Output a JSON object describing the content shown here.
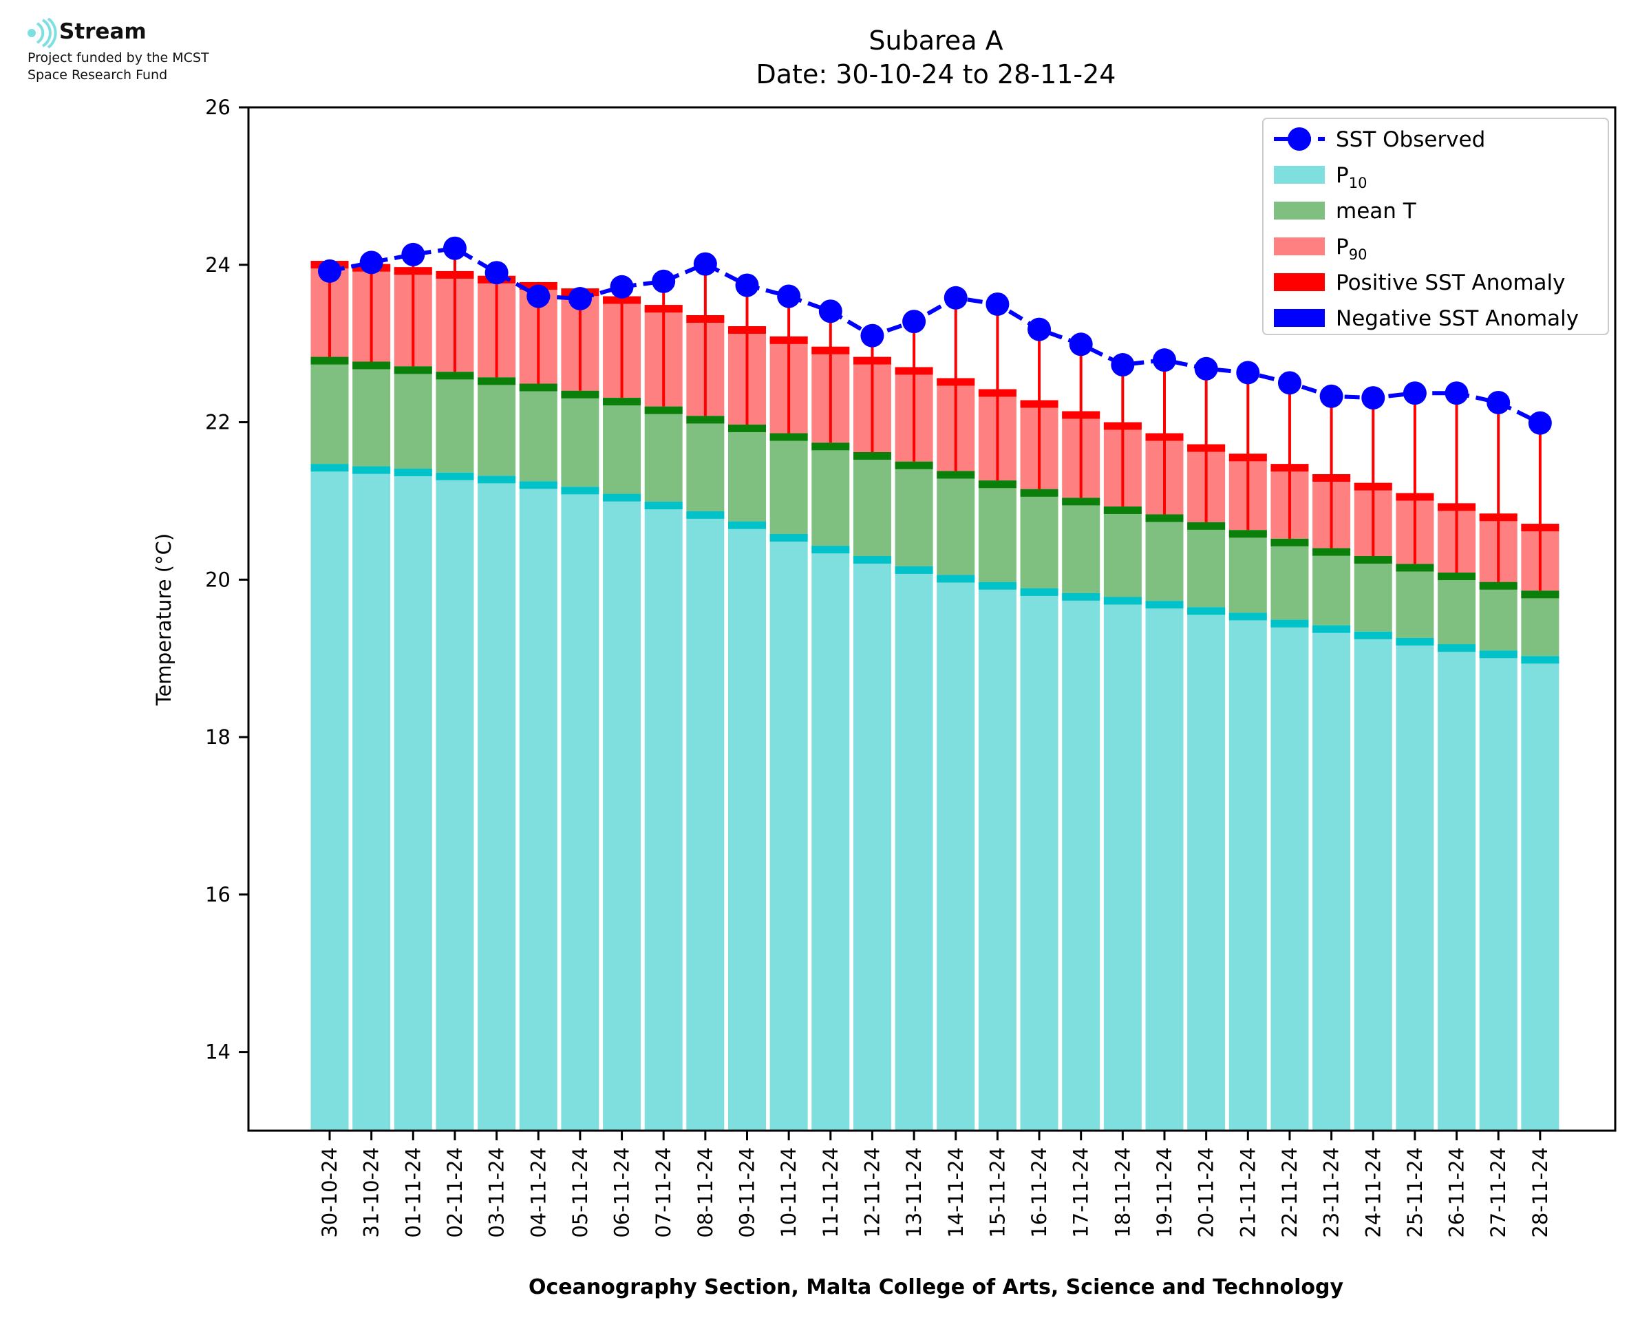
{
  "logo": {
    "name": "Stream",
    "line1": "Project funded by the MCST",
    "line2": "Space Research Fund",
    "color": "#7ddfdf"
  },
  "chart_data": {
    "type": "bar",
    "title": "Subarea A",
    "subtitle": "Date: 30-10-24 to 28-11-24",
    "xlabel": "Oceanography Section, Malta College of Arts, Science and Technology",
    "ylabel": "Temperature (°C)",
    "ylim": [
      13,
      26
    ],
    "yticks": [
      14,
      16,
      18,
      20,
      22,
      24,
      26
    ],
    "grid": false,
    "legend_position": "top-right",
    "categories": [
      "30-10-24",
      "31-10-24",
      "01-11-24",
      "02-11-24",
      "03-11-24",
      "04-11-24",
      "05-11-24",
      "06-11-24",
      "07-11-24",
      "08-11-24",
      "09-11-24",
      "10-11-24",
      "11-11-24",
      "12-11-24",
      "13-11-24",
      "14-11-24",
      "15-11-24",
      "16-11-24",
      "17-11-24",
      "18-11-24",
      "19-11-24",
      "20-11-24",
      "21-11-24",
      "22-11-24",
      "23-11-24",
      "24-11-24",
      "25-11-24",
      "26-11-24",
      "27-11-24",
      "28-11-24"
    ],
    "series": [
      {
        "name": "P10",
        "color": "#7fdfdf",
        "edge_color": "#00c2c8",
        "values": [
          21.47,
          21.44,
          21.41,
          21.36,
          21.32,
          21.25,
          21.18,
          21.09,
          20.99,
          20.87,
          20.74,
          20.58,
          20.43,
          20.3,
          20.17,
          20.06,
          19.97,
          19.89,
          19.83,
          19.78,
          19.73,
          19.65,
          19.58,
          19.49,
          19.42,
          19.34,
          19.26,
          19.18,
          19.1,
          19.03
        ]
      },
      {
        "name": "mean T",
        "color": "#7fbf7f",
        "edge_color": "#0a800a",
        "values": [
          22.83,
          22.77,
          22.71,
          22.64,
          22.57,
          22.49,
          22.4,
          22.31,
          22.2,
          22.08,
          21.97,
          21.86,
          21.74,
          21.62,
          21.5,
          21.38,
          21.26,
          21.15,
          21.04,
          20.93,
          20.83,
          20.73,
          20.63,
          20.52,
          20.4,
          20.3,
          20.2,
          20.09,
          19.97,
          19.86
        ]
      },
      {
        "name": "P90",
        "color": "#ff8080",
        "edge_color": "#ff0000",
        "values": [
          24.05,
          24.01,
          23.97,
          23.92,
          23.86,
          23.78,
          23.7,
          23.6,
          23.49,
          23.36,
          23.22,
          23.09,
          22.96,
          22.83,
          22.7,
          22.56,
          22.42,
          22.28,
          22.14,
          22.0,
          21.86,
          21.72,
          21.6,
          21.47,
          21.34,
          21.23,
          21.1,
          20.97,
          20.84,
          20.71
        ]
      },
      {
        "name": "SST Observed",
        "color": "#0000ff",
        "marker": "circle",
        "line_style": "dashed",
        "values": [
          23.92,
          24.03,
          24.13,
          24.21,
          23.9,
          23.6,
          23.57,
          23.72,
          23.79,
          24.01,
          23.74,
          23.6,
          23.41,
          23.1,
          23.28,
          23.58,
          23.5,
          23.18,
          22.99,
          22.73,
          22.79,
          22.68,
          22.63,
          22.5,
          22.33,
          22.31,
          22.37,
          22.37,
          22.25,
          21.99
        ]
      }
    ],
    "legend": [
      {
        "label": "SST Observed",
        "kind": "line-marker",
        "color": "#0000ff"
      },
      {
        "label": "P",
        "sub": "10",
        "kind": "patch",
        "color": "#7fdfdf"
      },
      {
        "label": "mean T",
        "kind": "patch",
        "color": "#7fbf7f"
      },
      {
        "label": "P",
        "sub": "90",
        "kind": "patch",
        "color": "#ff8080"
      },
      {
        "label": "Positive SST Anomaly",
        "kind": "patch",
        "color": "#ff0000"
      },
      {
        "label": "Negative SST Anomaly",
        "kind": "patch",
        "color": "#0000ff"
      }
    ],
    "positive_anomaly_color": "#ff0000",
    "negative_anomaly_color": "#0000ff"
  }
}
